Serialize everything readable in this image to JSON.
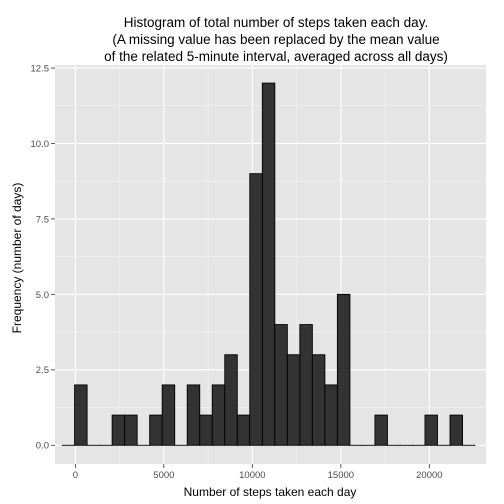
{
  "chart_data": {
    "type": "bar",
    "title_lines": [
      "Histogram of total number of steps taken each day.",
      "(A missing value has been replaced by the mean value",
      "of the related 5-minute interval, averaged across all days)"
    ],
    "xlabel": "Number of steps taken each day",
    "ylabel": "Frequency (number of days)",
    "xlim": [
      -1150,
      23200
    ],
    "ylim": [
      -0.62,
      12.6
    ],
    "x_ticks": [
      0,
      5000,
      10000,
      15000,
      20000
    ],
    "x_tick_labels": [
      "0",
      "5000",
      "10000",
      "15000",
      "20000"
    ],
    "y_ticks": [
      0,
      2.5,
      5,
      7.5,
      10,
      12.5
    ],
    "y_tick_labels": [
      "0.0",
      "2.5",
      "5.0",
      "7.5",
      "10.0",
      "12.5"
    ],
    "bin_width": 707,
    "bin_start": -750,
    "values": [
      0,
      2,
      0,
      0,
      1,
      1,
      0,
      1,
      2,
      0,
      2,
      1,
      2,
      3,
      1,
      9,
      12,
      4,
      3,
      4,
      3,
      2,
      5,
      0,
      0,
      1,
      0,
      0,
      0,
      1,
      0,
      1,
      0
    ],
    "grid": true,
    "colors": {
      "panel": "#e5e5e5",
      "grid_major": "#ffffff",
      "grid_minor": "#f2f2f2",
      "bar_fill": "#333333",
      "bar_stroke": "#000000"
    }
  }
}
